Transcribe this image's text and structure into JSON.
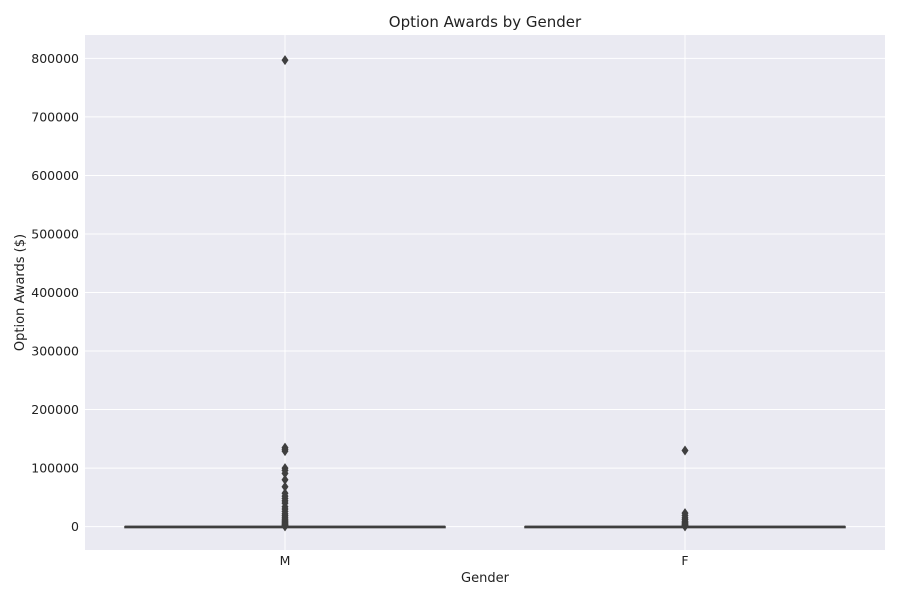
{
  "chart_data": {
    "type": "box",
    "title": "Option Awards by Gender",
    "xlabel": "Gender",
    "ylabel": "Option Awards ($)",
    "categories": [
      "M",
      "F"
    ],
    "ylim": [
      -40000,
      840000
    ],
    "yticks": [
      0,
      100000,
      200000,
      300000,
      400000,
      500000,
      600000,
      700000,
      800000
    ],
    "grid": true,
    "colors": {
      "plot_bg": "#eaeaf2",
      "grid": "#ffffff",
      "box": "#3f3f3f"
    },
    "boxes": [
      {
        "category": "M",
        "q1": 0,
        "median": 0,
        "q3": 0,
        "whisker_low": 0,
        "whisker_high": 0,
        "outliers": [
          797000,
          135000,
          132000,
          129000,
          100000,
          96000,
          91000,
          80000,
          68000,
          57000,
          52000,
          48000,
          44000,
          40000,
          34000,
          30000,
          26000,
          22000,
          19000,
          16000,
          13000,
          11000,
          9000,
          7000,
          5000,
          3500,
          2500,
          1500,
          800,
          300
        ]
      },
      {
        "category": "F",
        "q1": 0,
        "median": 0,
        "q3": 0,
        "whisker_low": 0,
        "whisker_high": 0,
        "outliers": [
          130000,
          23000,
          19000,
          15000,
          12000,
          9000,
          7000,
          5000,
          3500,
          2500,
          1500,
          800,
          300
        ]
      }
    ]
  }
}
